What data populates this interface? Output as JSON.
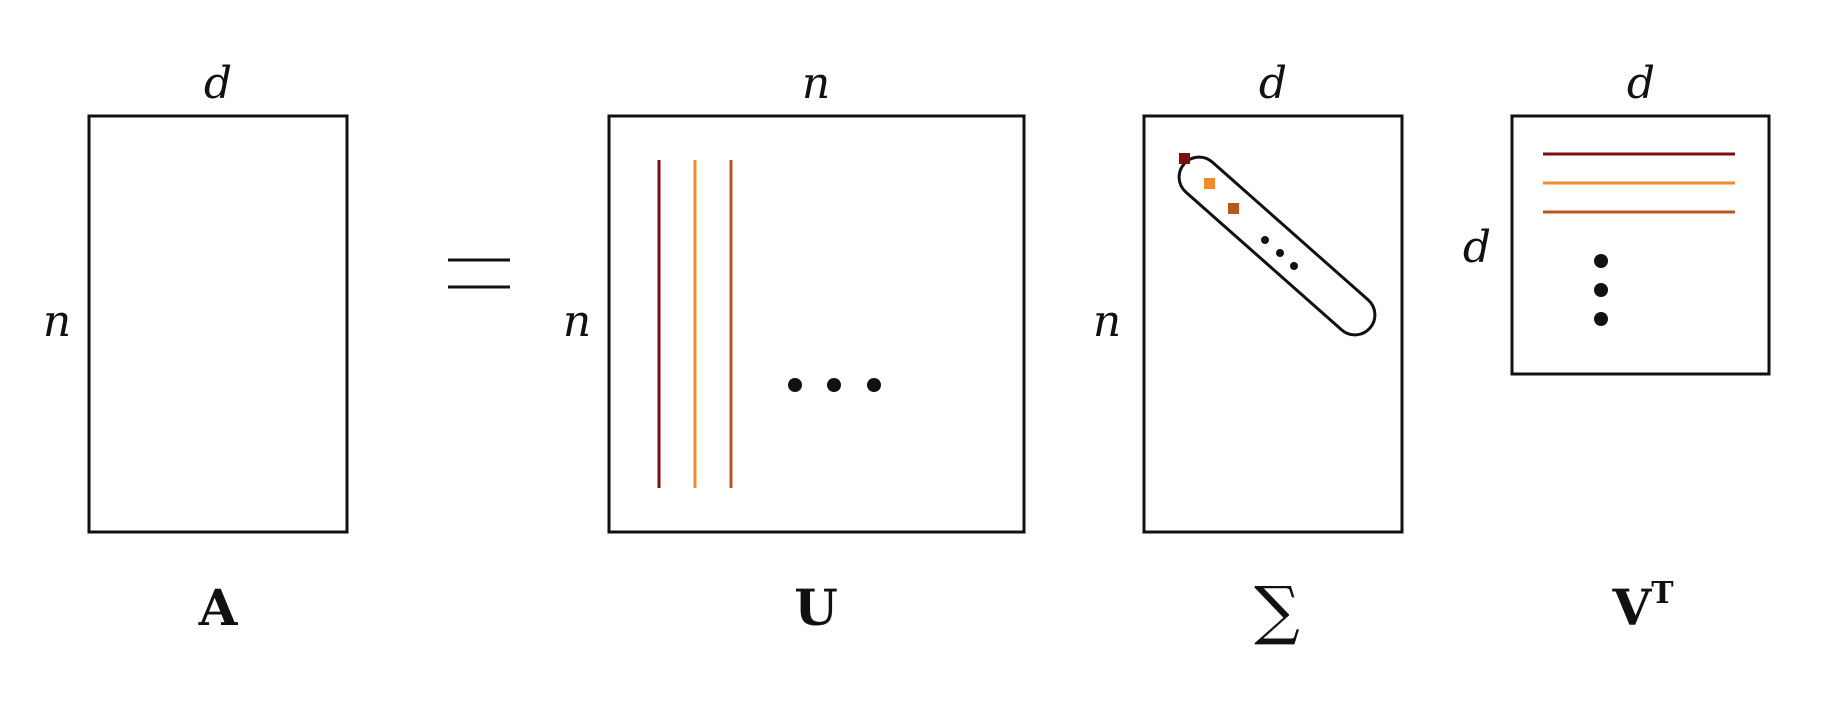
{
  "equation": {
    "equals_symbol": "=",
    "matrices": [
      {
        "key": "a",
        "name": "A",
        "top_dim": "d",
        "left_dim": "n"
      },
      {
        "key": "u",
        "name": "U",
        "top_dim": "n",
        "left_dim": "n"
      },
      {
        "key": "sigma",
        "name": "∑",
        "top_dim": "d",
        "left_dim": "n"
      },
      {
        "key": "vt",
        "name": "V",
        "superscript": "T",
        "top_dim": "d",
        "left_dim": "d"
      }
    ]
  },
  "colors": {
    "vector_1": "#7a0f12",
    "vector_2": "#f08a2a",
    "vector_3": "#b8561f",
    "outline": "#111111"
  }
}
